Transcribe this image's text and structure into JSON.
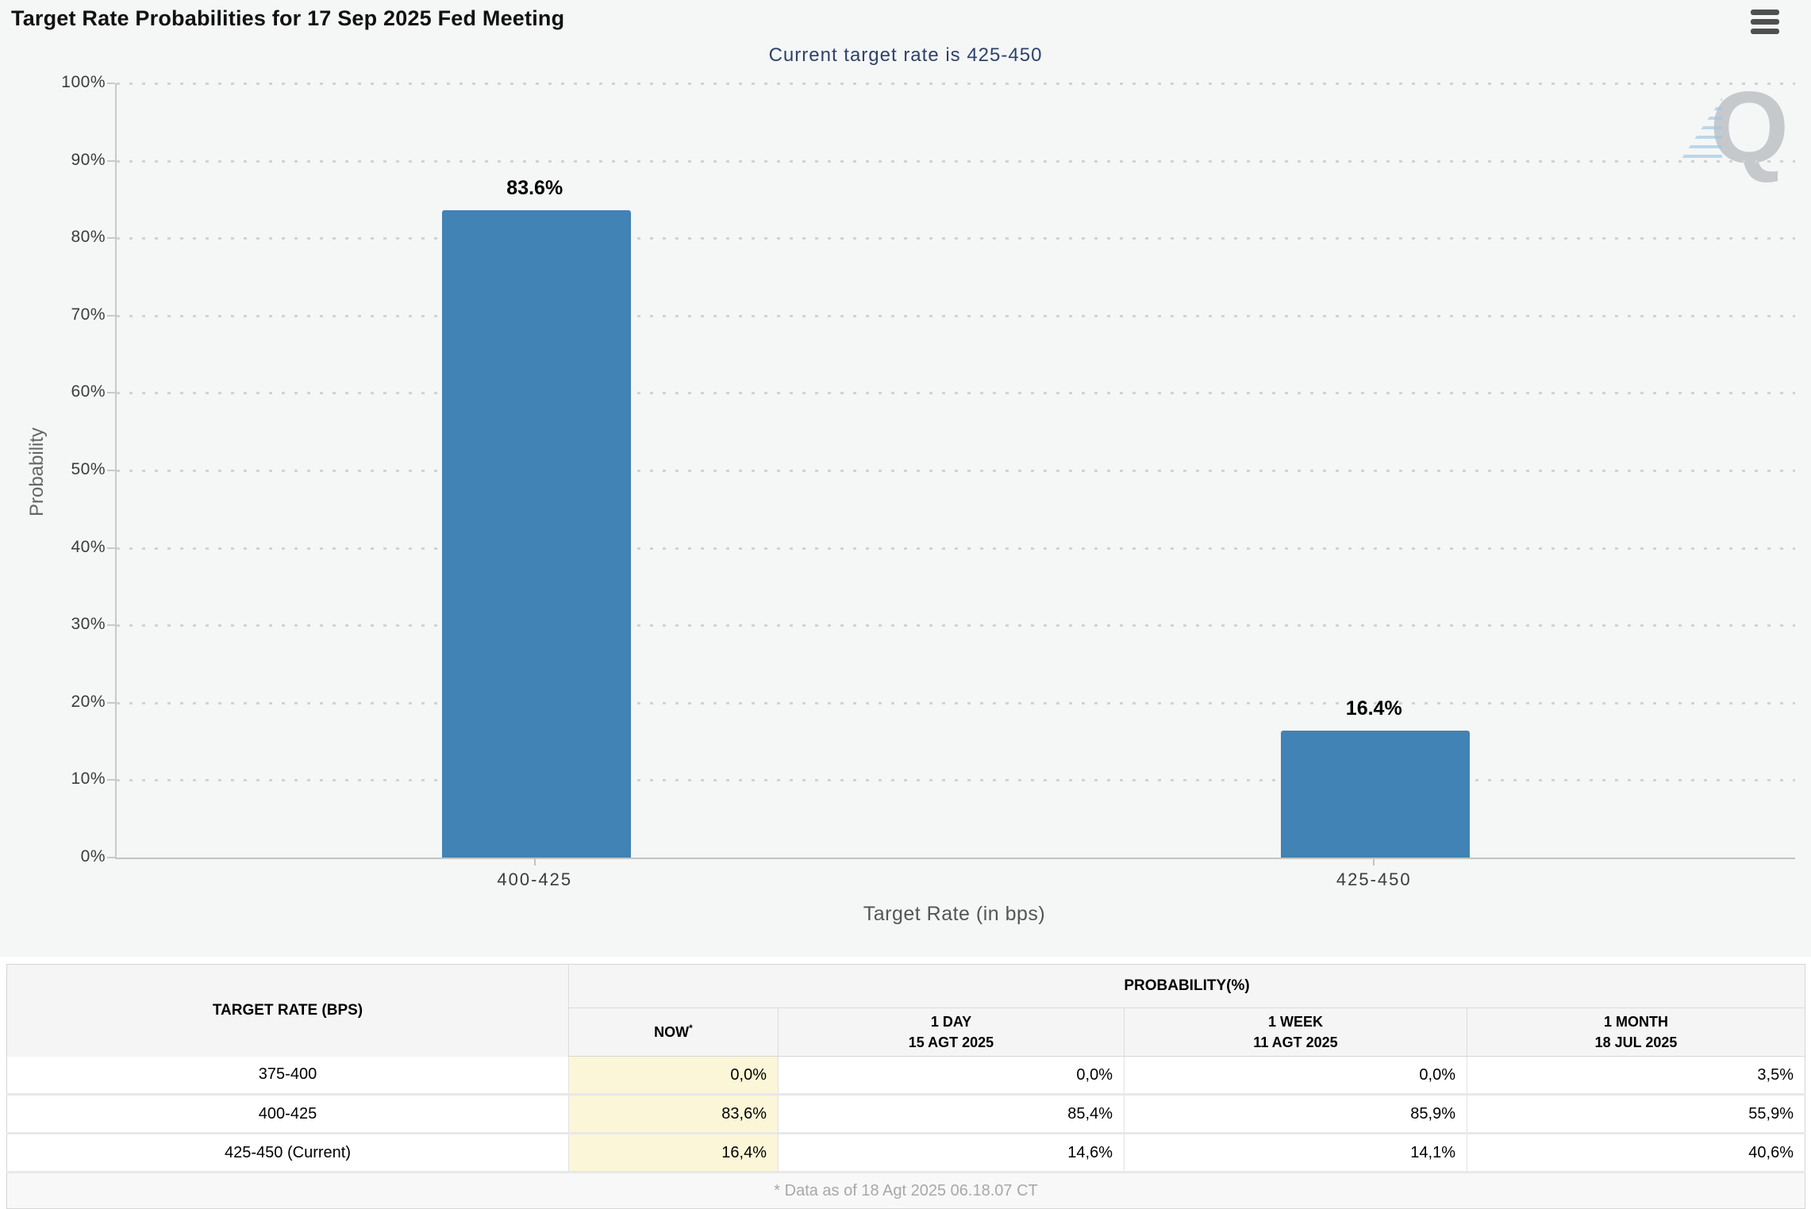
{
  "chart_data": {
    "type": "bar",
    "title": "Target Rate Probabilities for 17 Sep 2025 Fed Meeting",
    "subtitle": "Current target rate is 425-450",
    "categories": [
      "400-425",
      "425-450"
    ],
    "values": [
      83.6,
      16.4
    ],
    "data_labels": [
      "83.6%",
      "16.4%"
    ],
    "xlabel": "Target Rate (in bps)",
    "ylabel": "Probability",
    "ylim": [
      0,
      100
    ],
    "ytick_step": 10,
    "ytick_suffix": "%",
    "grid": "horizontal-dotted",
    "legend": "none",
    "bar_color": "#4183b5"
  },
  "watermark": {
    "letter": "Q"
  },
  "table": {
    "rate_header": "TARGET RATE (BPS)",
    "group_header": "PROBABILITY(%)",
    "sub_columns": [
      {
        "label": "NOW",
        "superscript": "*",
        "sublabel": ""
      },
      {
        "label": "1 DAY",
        "superscript": "",
        "sublabel": "15 AGT 2025"
      },
      {
        "label": "1 WEEK",
        "superscript": "",
        "sublabel": "11 AGT 2025"
      },
      {
        "label": "1 MONTH",
        "superscript": "",
        "sublabel": "18 JUL 2025"
      }
    ],
    "rows": [
      {
        "rate": "375-400",
        "values": [
          "0,0%",
          "0,0%",
          "0,0%",
          "3,5%"
        ],
        "highlight_col": 0
      },
      {
        "rate": "400-425",
        "values": [
          "83,6%",
          "85,4%",
          "85,9%",
          "55,9%"
        ],
        "highlight_col": 0
      },
      {
        "rate": "425-450 (Current)",
        "values": [
          "16,4%",
          "14,6%",
          "14,1%",
          "40,6%"
        ],
        "highlight_col": 0
      }
    ],
    "footnote": "* Data as of 18 Agt 2025 06.18.07 CT"
  },
  "colors": {
    "chart_background": "#f5f6f6",
    "bar": "#4183b5",
    "subtitle_text": "#2e4369",
    "now_column_highlight": "#faf6d7",
    "axis_line": "#c9c9c9",
    "grid_dot": "#d2d2d2",
    "footnote_text": "#a8a8a8"
  }
}
